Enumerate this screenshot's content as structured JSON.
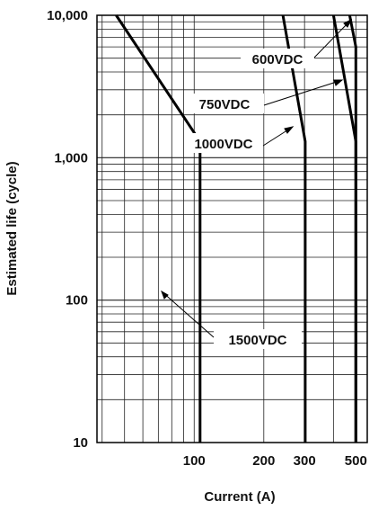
{
  "chart_data": {
    "type": "line",
    "title": "",
    "xlabel": "Current (A)",
    "ylabel": "Estimated life (cycle)",
    "x_scale": "log",
    "y_scale": "log",
    "xlim": [
      38,
      560
    ],
    "ylim": [
      10,
      10000
    ],
    "x_ticks": [
      {
        "value": 100,
        "label": "100"
      },
      {
        "value": 200,
        "label": "200"
      },
      {
        "value": 300,
        "label": "300"
      },
      {
        "value": 500,
        "label": "500"
      }
    ],
    "y_ticks": [
      {
        "value": 10,
        "label": "10"
      },
      {
        "value": 100,
        "label": "100"
      },
      {
        "value": 1000,
        "label": "1,000"
      },
      {
        "value": 10000,
        "label": "10,000"
      }
    ],
    "grid": true,
    "series": [
      {
        "name": "1500VDC",
        "points": [
          [
            46,
            10000
          ],
          [
            106,
            1300
          ],
          [
            106,
            10
          ]
        ]
      },
      {
        "name": "1000VDC",
        "points": [
          [
            242,
            10000
          ],
          [
            302,
            1300
          ],
          [
            302,
            10
          ]
        ]
      },
      {
        "name": "750VDC",
        "points": [
          [
            400,
            10000
          ],
          [
            500,
            1300
          ],
          [
            500,
            10
          ]
        ]
      },
      {
        "name": "600VDC",
        "points": [
          [
            470,
            10000
          ],
          [
            500,
            6000
          ],
          [
            500,
            10
          ]
        ]
      }
    ]
  }
}
